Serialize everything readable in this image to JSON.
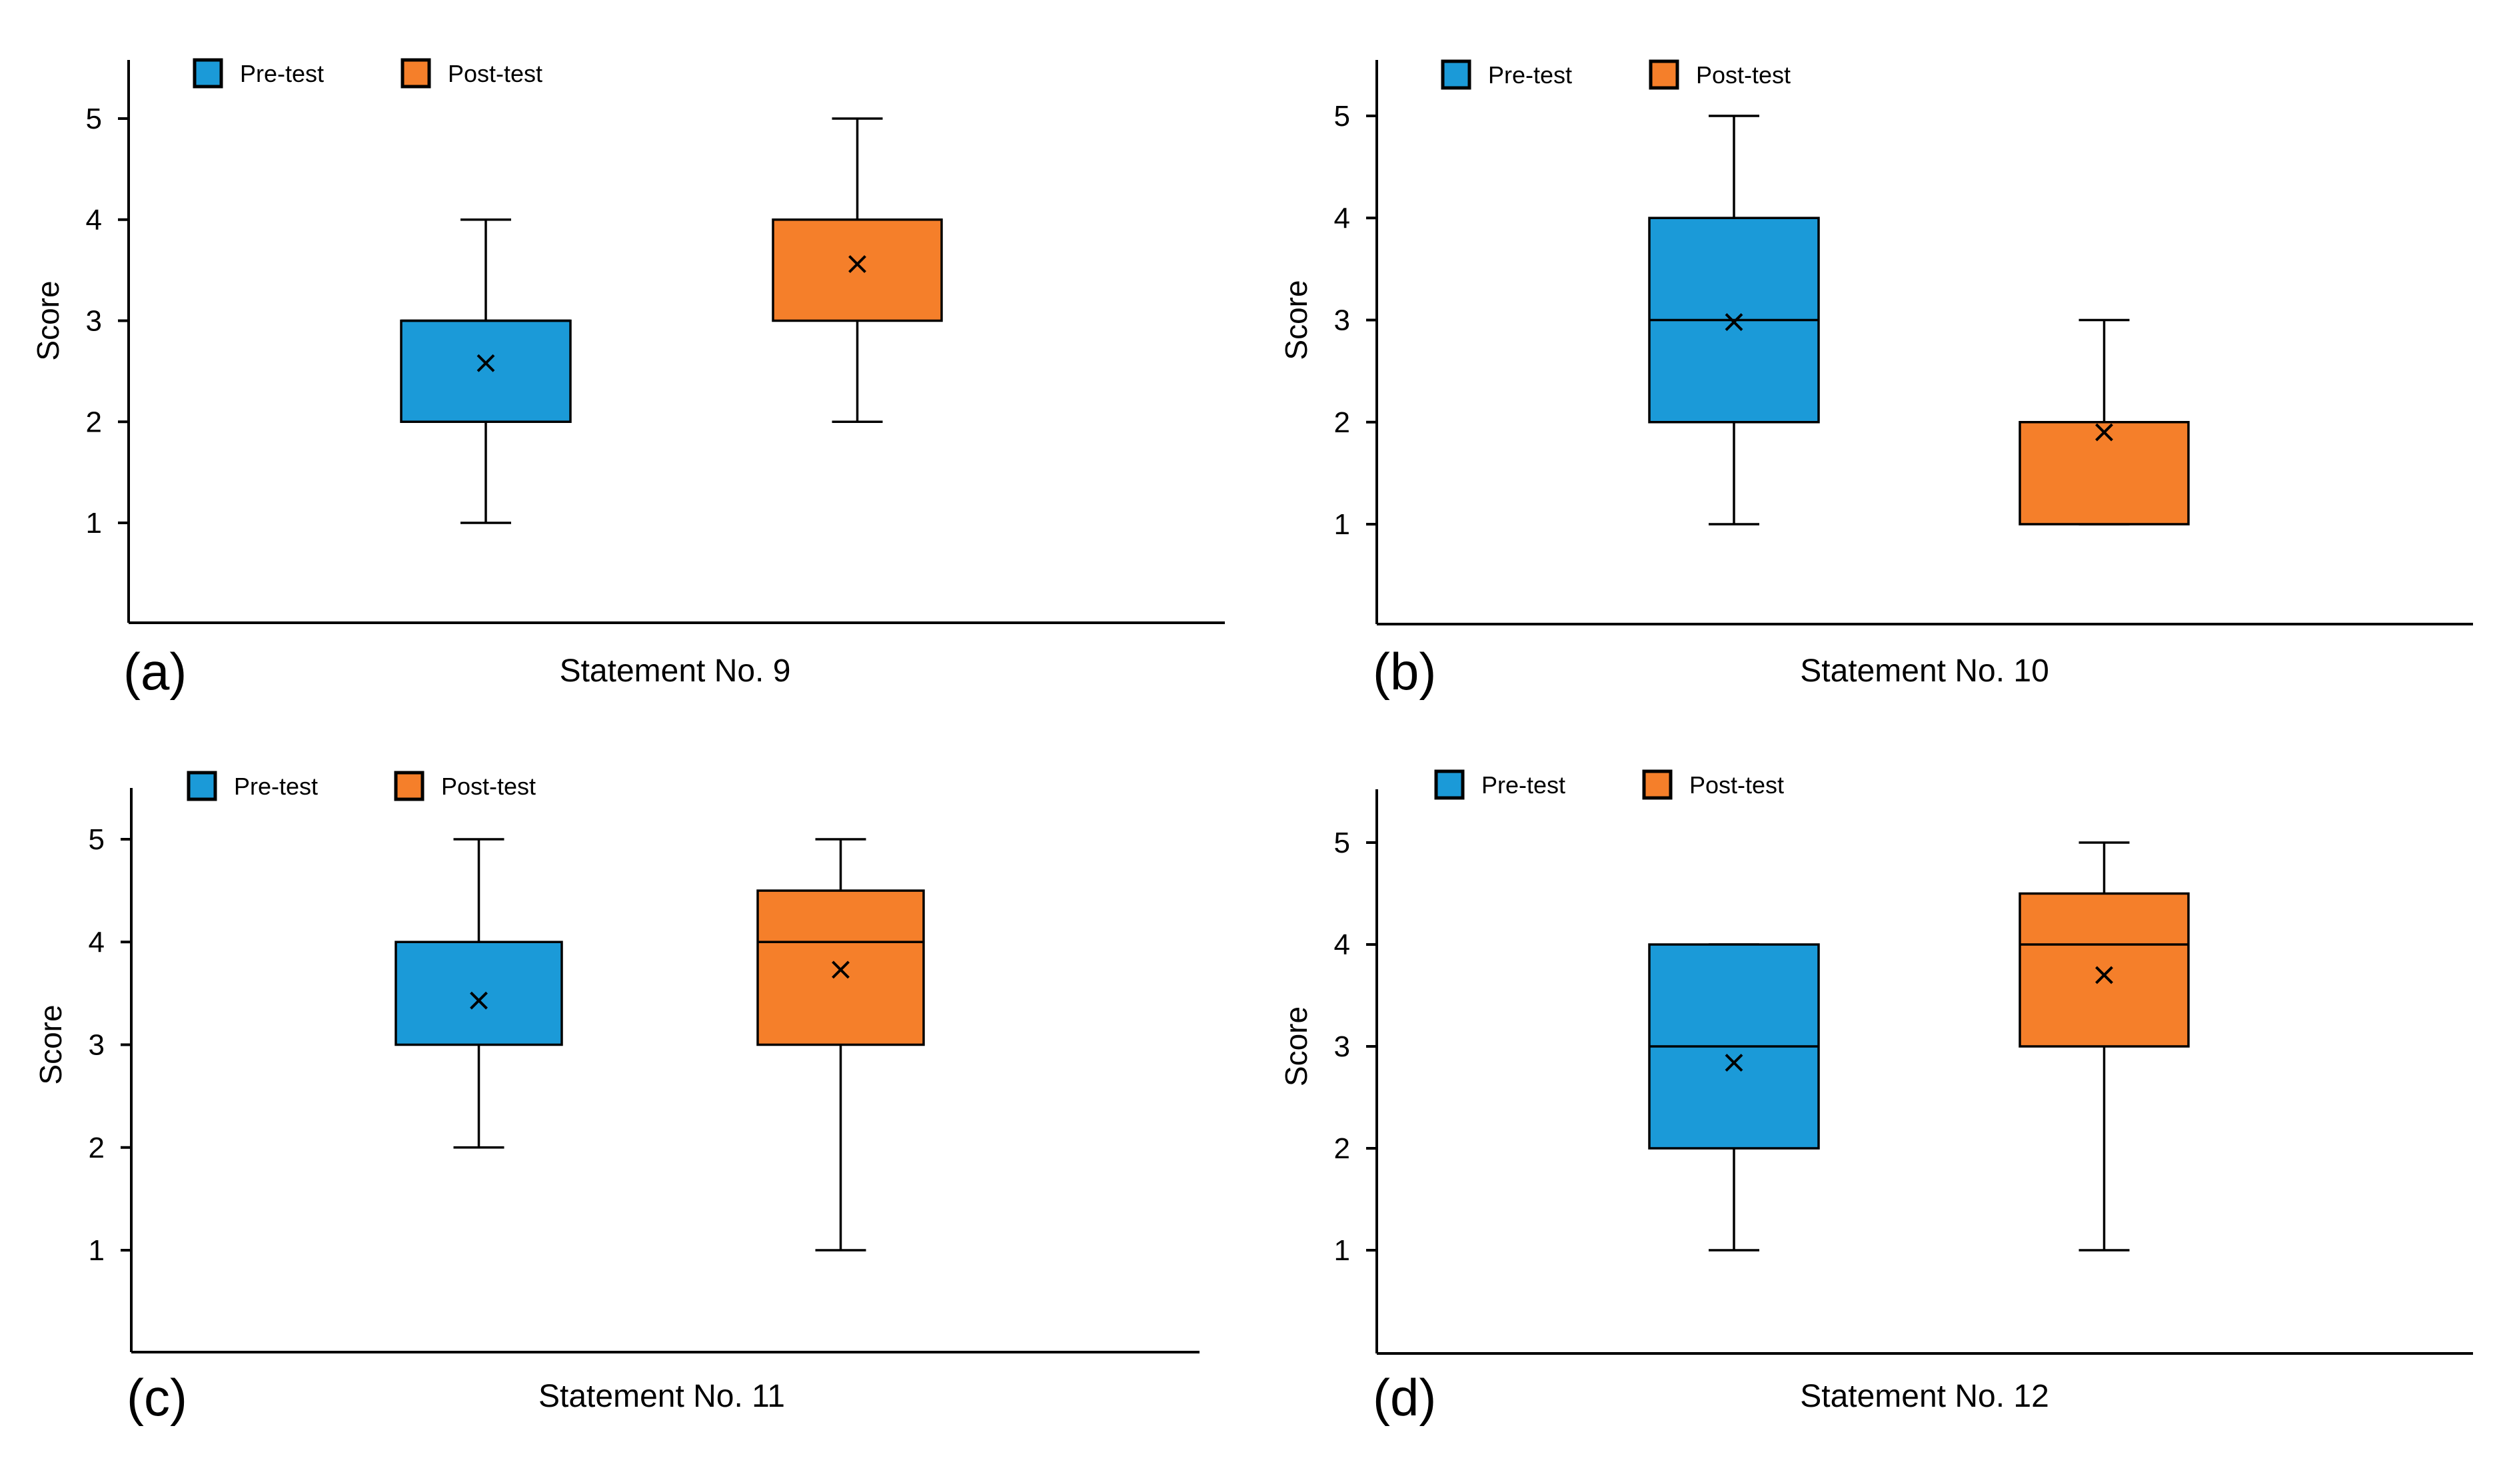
{
  "figure": {
    "legend_labels": [
      "Pre-test",
      "Post-test"
    ],
    "colors": {
      "pre": "#1b9ad8",
      "post": "#f57f2a",
      "line": "#000000"
    }
  },
  "chart_data": [
    {
      "type": "box",
      "panel_label": "(a)",
      "xlabel": "Statement No. 9",
      "ylabel": "Score",
      "yticks": [
        "1",
        "2",
        "3",
        "4",
        "5"
      ],
      "ylim": [
        0,
        5.5
      ],
      "legend": [
        "Pre-test",
        "Post-test"
      ],
      "series": [
        {
          "name": "Pre-test",
          "min": 1,
          "q1": 2,
          "median": 3,
          "q3": 3,
          "max": 4,
          "mean": 2.58
        },
        {
          "name": "Post-test",
          "min": 2,
          "q1": 3,
          "median": 4,
          "q3": 4,
          "max": 5,
          "mean": 3.56
        }
      ]
    },
    {
      "type": "box",
      "panel_label": "(b)",
      "xlabel": "Statement No. 10",
      "ylabel": "Score",
      "yticks": [
        "1",
        "2",
        "3",
        "4",
        "5"
      ],
      "ylim": [
        0,
        5.5
      ],
      "legend": [
        "Pre-test",
        "Post-test"
      ],
      "series": [
        {
          "name": "Pre-test",
          "min": 1,
          "q1": 2,
          "median": 3,
          "q3": 4,
          "max": 5,
          "mean": 2.98
        },
        {
          "name": "Post-test",
          "min": 1,
          "q1": 1,
          "median": 2,
          "q3": 2,
          "max": 3,
          "mean": 1.9
        }
      ]
    },
    {
      "type": "box",
      "panel_label": "(c)",
      "xlabel": "Statement No. 11",
      "ylabel": "Score",
      "yticks": [
        "1",
        "2",
        "3",
        "4",
        "5"
      ],
      "ylim": [
        0,
        5.5
      ],
      "legend": [
        "Pre-test",
        "Post-test"
      ],
      "series": [
        {
          "name": "Pre-test",
          "min": 2,
          "q1": 3,
          "median": 4,
          "q3": 4,
          "max": 5,
          "mean": 3.43
        },
        {
          "name": "Post-test",
          "min": 1,
          "q1": 3,
          "median": 4,
          "q3": 4.5,
          "max": 5,
          "mean": 3.73
        }
      ]
    },
    {
      "type": "box",
      "panel_label": "(d)",
      "xlabel": "Statement No. 12",
      "ylabel": "Score",
      "yticks": [
        "1",
        "2",
        "3",
        "4",
        "5"
      ],
      "ylim": [
        0,
        5.5
      ],
      "legend": [
        "Pre-test",
        "Post-test"
      ],
      "series": [
        {
          "name": "Pre-test",
          "min": 1,
          "q1": 2,
          "median": 3,
          "q3": 4,
          "max": 4,
          "mean": 2.84
        },
        {
          "name": "Post-test",
          "min": 1,
          "q1": 3,
          "median": 4,
          "q3": 4.5,
          "max": 5,
          "mean": 3.7
        }
      ]
    }
  ]
}
